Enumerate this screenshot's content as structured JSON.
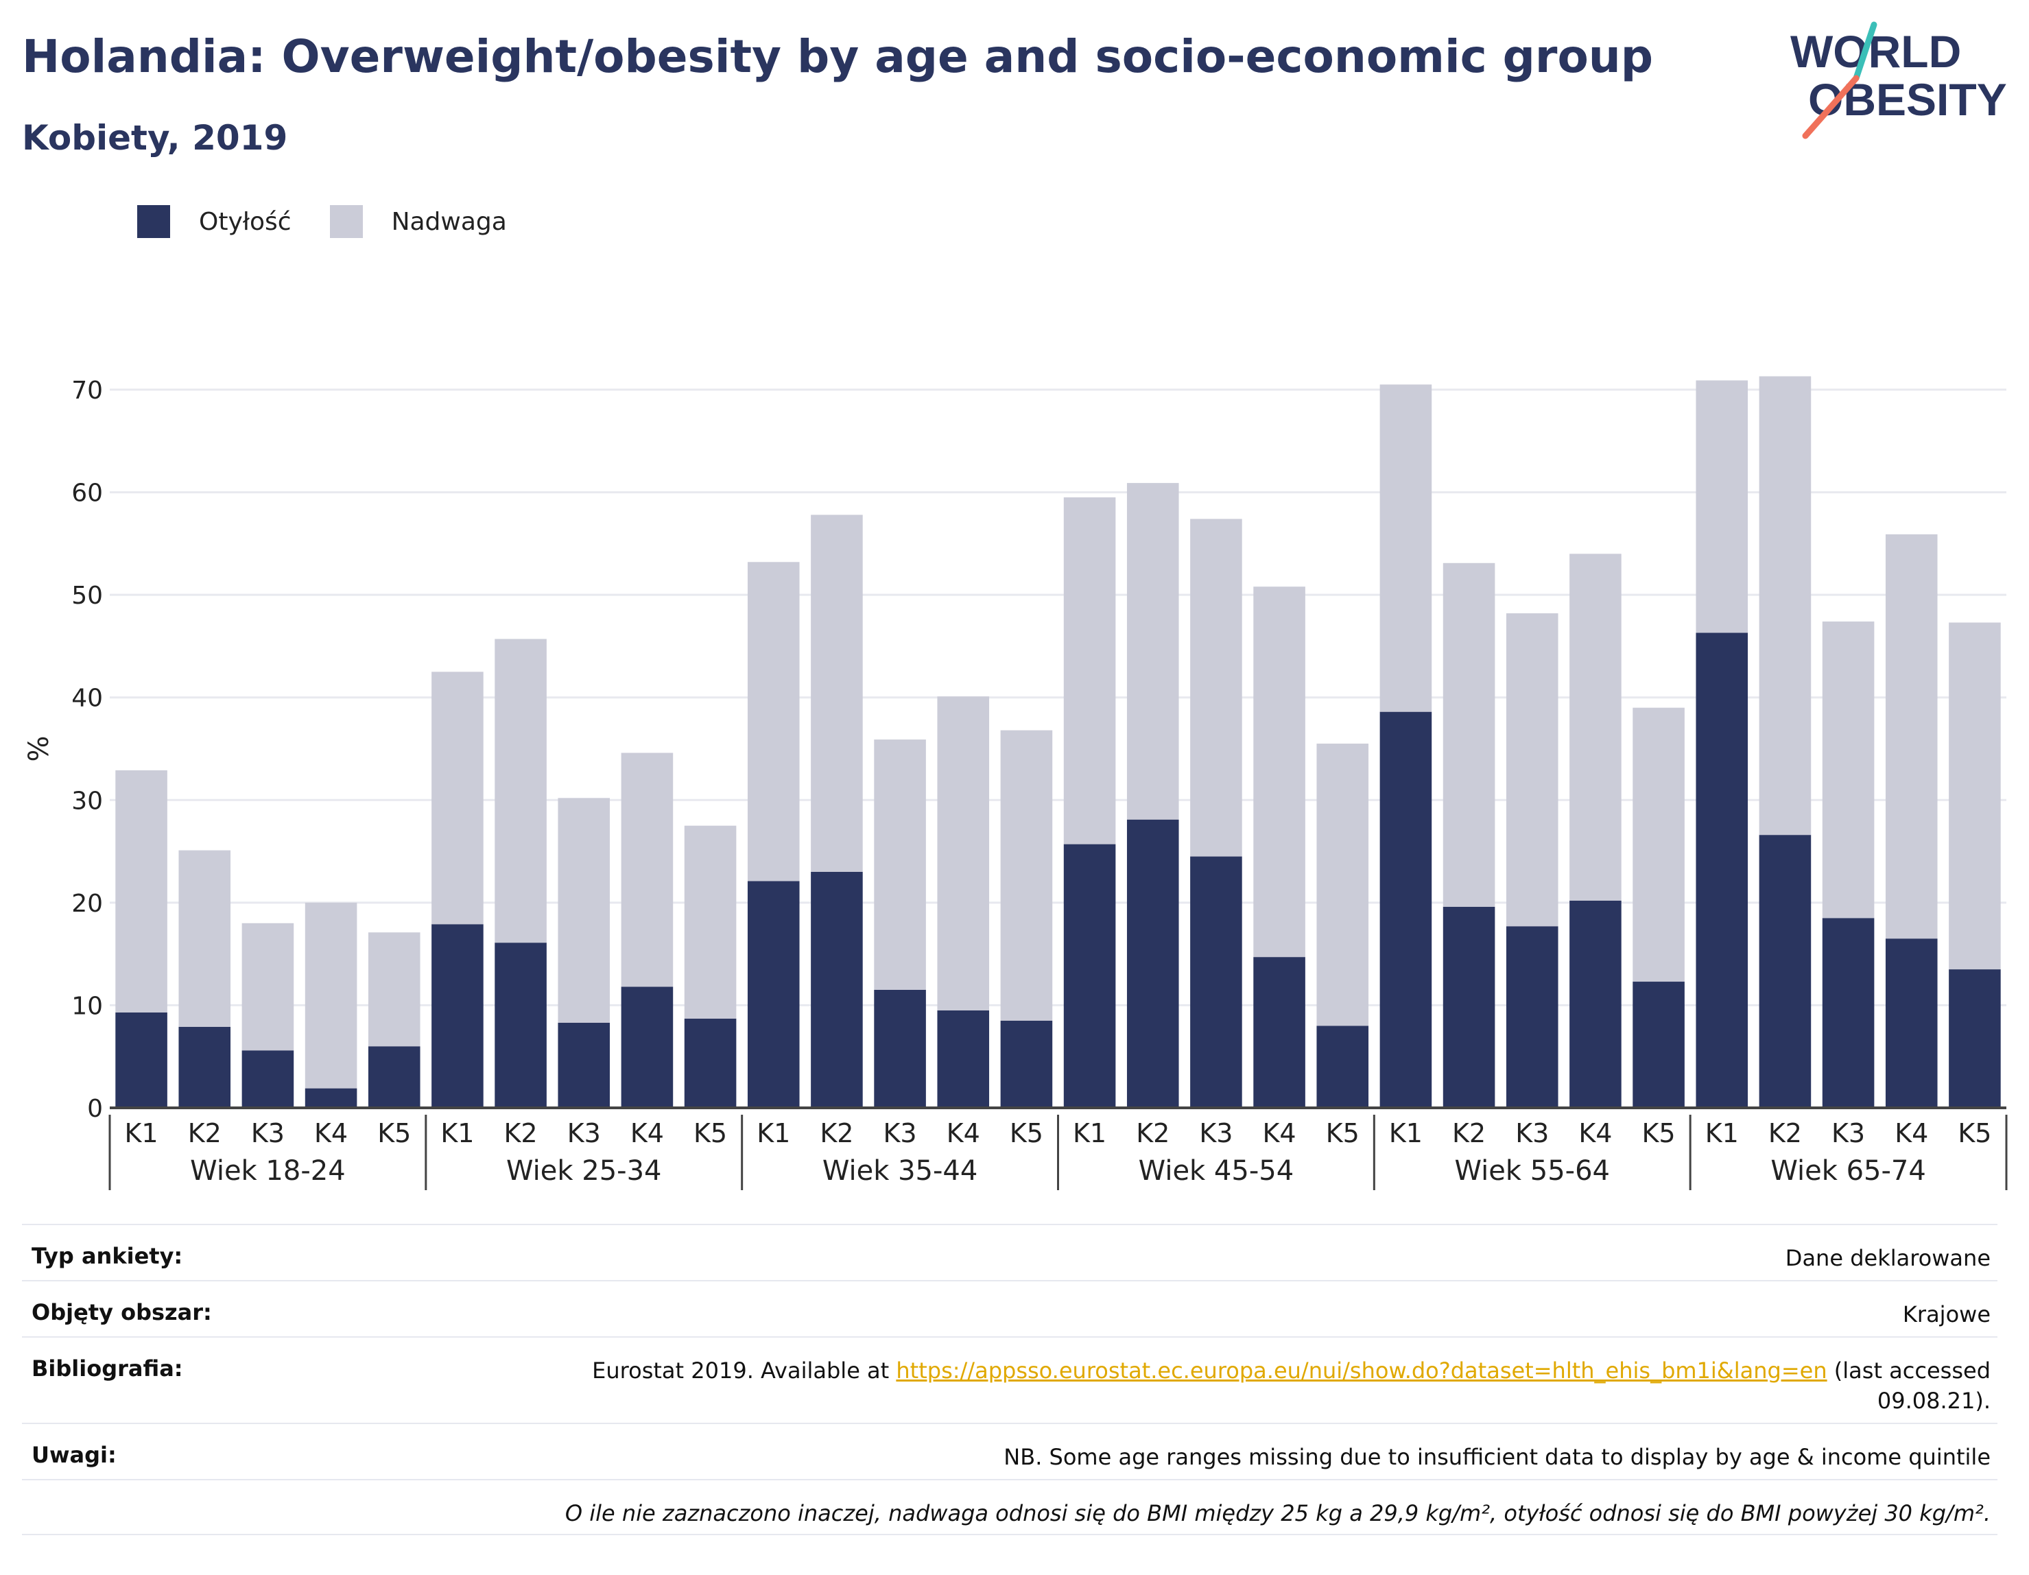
{
  "header": {
    "title": "Holandia: Overweight/obesity by age and socio-economic group",
    "subtitle": "Kobiety, 2019"
  },
  "logo": {
    "line1": "WORLD",
    "line2": "OBESITY"
  },
  "legend": [
    {
      "label": "Otyłość",
      "color": "#2a355f"
    },
    {
      "label": "Nadwaga",
      "color": "#cbccd8"
    }
  ],
  "chart_data": {
    "type": "bar",
    "stacked": true,
    "ylabel": "%",
    "ylim": [
      0,
      70
    ],
    "yticks": [
      0,
      10,
      20,
      30,
      40,
      50,
      60,
      70
    ],
    "grid": true,
    "legend_position": "top-left",
    "groups": [
      "Wiek 18-24",
      "Wiek 25-34",
      "Wiek 35-44",
      "Wiek 45-54",
      "Wiek 55-64",
      "Wiek 65-74"
    ],
    "categories": [
      "K1",
      "K2",
      "K3",
      "K4",
      "K5"
    ],
    "series": [
      {
        "name": "Otyłość",
        "color": "#2a355f",
        "values": [
          [
            9.3,
            7.9,
            5.6,
            1.9,
            6.0
          ],
          [
            17.9,
            16.1,
            8.3,
            11.8,
            8.7
          ],
          [
            22.1,
            23.0,
            11.5,
            9.5,
            8.5
          ],
          [
            25.7,
            28.1,
            24.5,
            14.7,
            8.0
          ],
          [
            38.6,
            19.6,
            17.7,
            20.2,
            12.3
          ],
          [
            46.3,
            26.6,
            18.5,
            16.5,
            13.5
          ]
        ]
      },
      {
        "name": "Nadwaga",
        "color": "#cbccd8",
        "values": [
          [
            23.6,
            17.2,
            12.4,
            18.1,
            11.1
          ],
          [
            24.6,
            29.6,
            21.9,
            22.8,
            18.8
          ],
          [
            31.1,
            34.8,
            24.4,
            30.6,
            28.3
          ],
          [
            33.8,
            32.8,
            32.9,
            36.1,
            27.5
          ],
          [
            31.9,
            33.5,
            30.5,
            33.8,
            26.7
          ],
          [
            24.6,
            44.7,
            28.9,
            39.4,
            33.8
          ]
        ]
      }
    ]
  },
  "meta": {
    "rows": [
      {
        "label": "Typ ankiety:",
        "value": "Dane deklarowane"
      },
      {
        "label": "Objęty obszar:",
        "value": "Krajowe"
      },
      {
        "label": "Bibliografia:",
        "prefix": "Eurostat 2019. Available at ",
        "link": "https://appsso.eurostat.ec.europa.eu/nui/show.do?dataset=hlth_ehis_bm1i&lang=en",
        "suffix_line1": " (last accessed",
        "suffix_line2": "09.08.21)."
      },
      {
        "label": "Uwagi:",
        "value": "NB. Some age ranges missing due to insufficient data to display by age & income quintile"
      }
    ],
    "footnote": "O ile nie zaznaczono inaczej, nadwaga odnosi się do BMI między 25 kg a 29,9 kg/m², otyłość odnosi się do BMI powyżej 30 kg/m²."
  }
}
